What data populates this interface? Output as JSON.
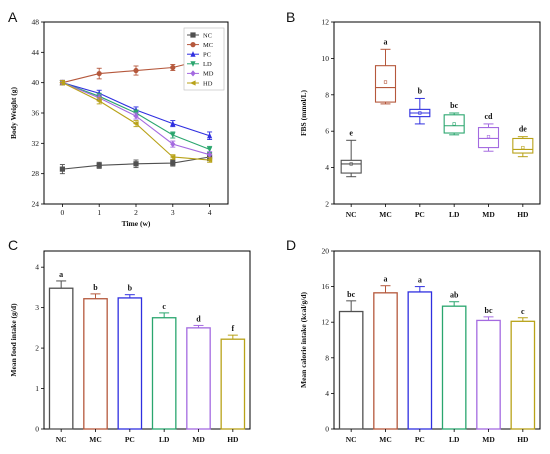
{
  "panel_labels": [
    "A",
    "B",
    "C",
    "D"
  ],
  "groups": [
    "NC",
    "MC",
    "PC",
    "LD",
    "MD",
    "HD"
  ],
  "colors": {
    "NC": "#505050",
    "MC": "#b5583c",
    "PC": "#2f2fe0",
    "LD": "#2aa66e",
    "MD": "#a46ae0",
    "HD": "#b8a218"
  },
  "chart_data": [
    {
      "panel": "A",
      "type": "line",
      "xlabel": "Time (w)",
      "ylabel": "Body Weight (g)",
      "x": [
        0,
        1,
        2,
        3,
        4
      ],
      "xlim": [
        -0.5,
        4.5
      ],
      "ylim": [
        24,
        48
      ],
      "yticks": [
        24,
        28,
        32,
        36,
        40,
        44,
        48
      ],
      "legend_position": "top-right",
      "series": [
        {
          "name": "NC",
          "marker": "square",
          "values": [
            28.6,
            29.1,
            29.3,
            29.4,
            30.2
          ],
          "errors": [
            0.6,
            0.4,
            0.5,
            0.4,
            0.5
          ]
        },
        {
          "name": "MC",
          "marker": "circle",
          "values": [
            40.0,
            41.2,
            41.6,
            42.0,
            43.2
          ],
          "errors": [
            0.3,
            0.7,
            0.6,
            0.4,
            0.5
          ]
        },
        {
          "name": "PC",
          "marker": "triangle-up",
          "values": [
            40.0,
            38.6,
            36.4,
            34.6,
            33.0
          ],
          "errors": [
            0.3,
            0.4,
            0.4,
            0.4,
            0.5
          ]
        },
        {
          "name": "LD",
          "marker": "triangle-down",
          "values": [
            40.0,
            38.2,
            36.0,
            33.1,
            31.2
          ],
          "errors": [
            0.3,
            0.4,
            0.4,
            0.4,
            0.4
          ]
        },
        {
          "name": "MD",
          "marker": "diamond",
          "values": [
            40.0,
            38.0,
            35.6,
            31.9,
            30.5
          ],
          "errors": [
            0.3,
            0.4,
            0.4,
            0.4,
            0.4
          ]
        },
        {
          "name": "HD",
          "marker": "triangle-left",
          "values": [
            40.0,
            37.6,
            34.6,
            30.2,
            29.8
          ],
          "errors": [
            0.3,
            0.4,
            0.4,
            0.3,
            0.3
          ]
        }
      ]
    },
    {
      "panel": "B",
      "type": "box",
      "ylabel": "FBS (mmol/L)",
      "ylim": [
        2,
        12
      ],
      "yticks": [
        2,
        4,
        6,
        8,
        10,
        12
      ],
      "categories": [
        "NC",
        "MC",
        "PC",
        "LD",
        "MD",
        "HD"
      ],
      "boxes": [
        {
          "name": "NC",
          "min": 3.5,
          "q1": 3.7,
          "median": 4.2,
          "q3": 4.4,
          "max": 5.5,
          "mean": 4.2,
          "letter": "e"
        },
        {
          "name": "MC",
          "min": 7.5,
          "q1": 7.6,
          "median": 8.4,
          "q3": 9.6,
          "max": 10.5,
          "mean": 8.7,
          "letter": "a"
        },
        {
          "name": "PC",
          "min": 6.4,
          "q1": 6.8,
          "median": 7.0,
          "q3": 7.2,
          "max": 7.8,
          "mean": 7.0,
          "letter": "b"
        },
        {
          "name": "LD",
          "min": 5.8,
          "q1": 5.9,
          "median": 6.3,
          "q3": 6.9,
          "max": 7.0,
          "mean": 6.4,
          "letter": "bc"
        },
        {
          "name": "MD",
          "min": 4.9,
          "q1": 5.1,
          "median": 5.6,
          "q3": 6.2,
          "max": 6.4,
          "mean": 5.7,
          "letter": "cd"
        },
        {
          "name": "HD",
          "min": 4.6,
          "q1": 4.8,
          "median": 5.0,
          "q3": 5.6,
          "max": 5.7,
          "mean": 5.1,
          "letter": "de"
        }
      ]
    },
    {
      "panel": "C",
      "type": "bar",
      "ylabel": "Mean food intake (g/d)",
      "ylim": [
        0,
        4.4
      ],
      "yticks": [
        0,
        1,
        2,
        3,
        4
      ],
      "categories": [
        "NC",
        "MC",
        "PC",
        "LD",
        "MD",
        "HD"
      ],
      "values": [
        3.48,
        3.22,
        3.24,
        2.75,
        2.5,
        2.22
      ],
      "errors": [
        0.18,
        0.12,
        0.08,
        0.12,
        0.06,
        0.1
      ],
      "letters": [
        "a",
        "b",
        "b",
        "c",
        "d",
        "f"
      ]
    },
    {
      "panel": "D",
      "type": "bar",
      "ylabel": "Mean calorie intake (kcal/g/d)",
      "ylim": [
        0,
        20
      ],
      "yticks": [
        0,
        4,
        8,
        12,
        16,
        20
      ],
      "categories": [
        "NC",
        "MC",
        "PC",
        "LD",
        "MD",
        "HD"
      ],
      "values": [
        13.2,
        15.3,
        15.4,
        13.8,
        12.2,
        12.1
      ],
      "errors": [
        1.2,
        0.8,
        0.6,
        0.5,
        0.4,
        0.4
      ],
      "letters": [
        "bc",
        "a",
        "a",
        "ab",
        "bc",
        "c"
      ]
    }
  ]
}
